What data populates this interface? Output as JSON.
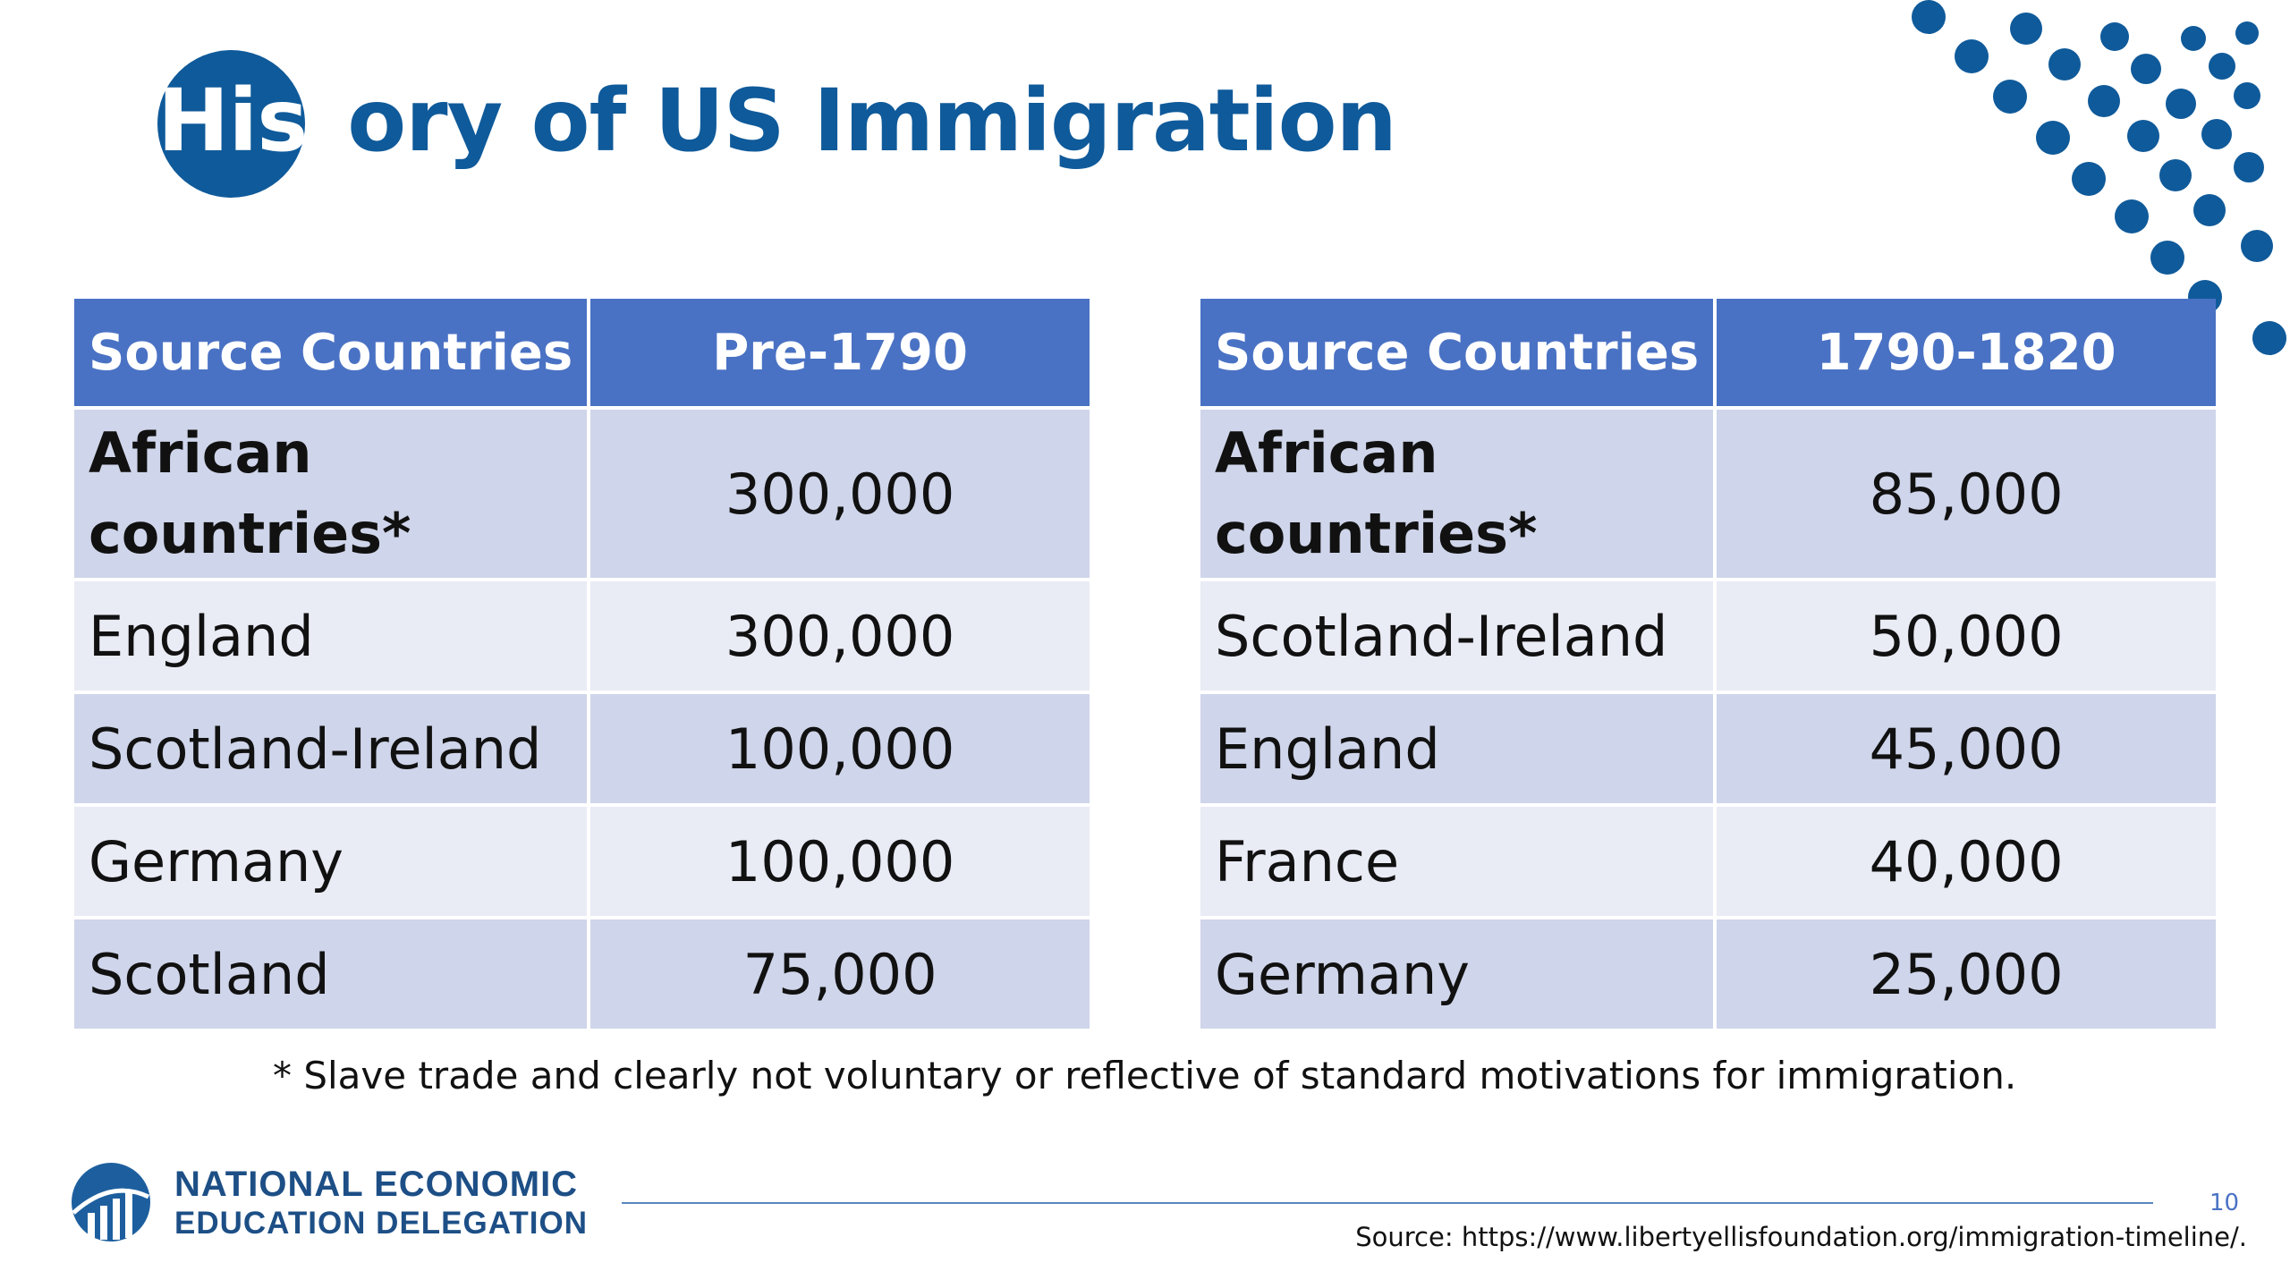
{
  "slide": {
    "title_part_on_circle": "Hist",
    "title_rest": "ory of US Immigration",
    "accent_color": "#0f5a9a",
    "header_color": "#4a72c4",
    "row_color_dark": "#cfd5ea",
    "row_color_light": "#e9ebf5"
  },
  "tables": [
    {
      "header": {
        "country": "Source Countries",
        "period": "Pre-1790"
      },
      "rows": [
        {
          "country": "African countries*",
          "value": "300,000"
        },
        {
          "country": "England",
          "value": "300,000"
        },
        {
          "country": "Scotland-Ireland",
          "value": "100,000"
        },
        {
          "country": "Germany",
          "value": "100,000"
        },
        {
          "country": "Scotland",
          "value": "75,000"
        }
      ]
    },
    {
      "header": {
        "country": "Source Countries",
        "period": "1790-1820"
      },
      "rows": [
        {
          "country": "African countries*",
          "value": "85,000"
        },
        {
          "country": "Scotland-Ireland",
          "value": "50,000"
        },
        {
          "country": "England",
          "value": "45,000"
        },
        {
          "country": "France",
          "value": "40,000"
        },
        {
          "country": "Germany",
          "value": "25,000"
        }
      ]
    }
  ],
  "footnote": "* Slave trade and clearly not voluntary or reflective of standard motivations for immigration.",
  "footer": {
    "logo_icon": "bar-chart-globe-icon",
    "org_line1": "NATIONAL ECONOMIC",
    "org_line2": "EDUCATION DELEGATION",
    "page_number": "10",
    "source": "Source: https://www.libertyellisfoundation.org/immigration-timeline/."
  },
  "decoration": {
    "icon": "dot-pattern-icon"
  }
}
